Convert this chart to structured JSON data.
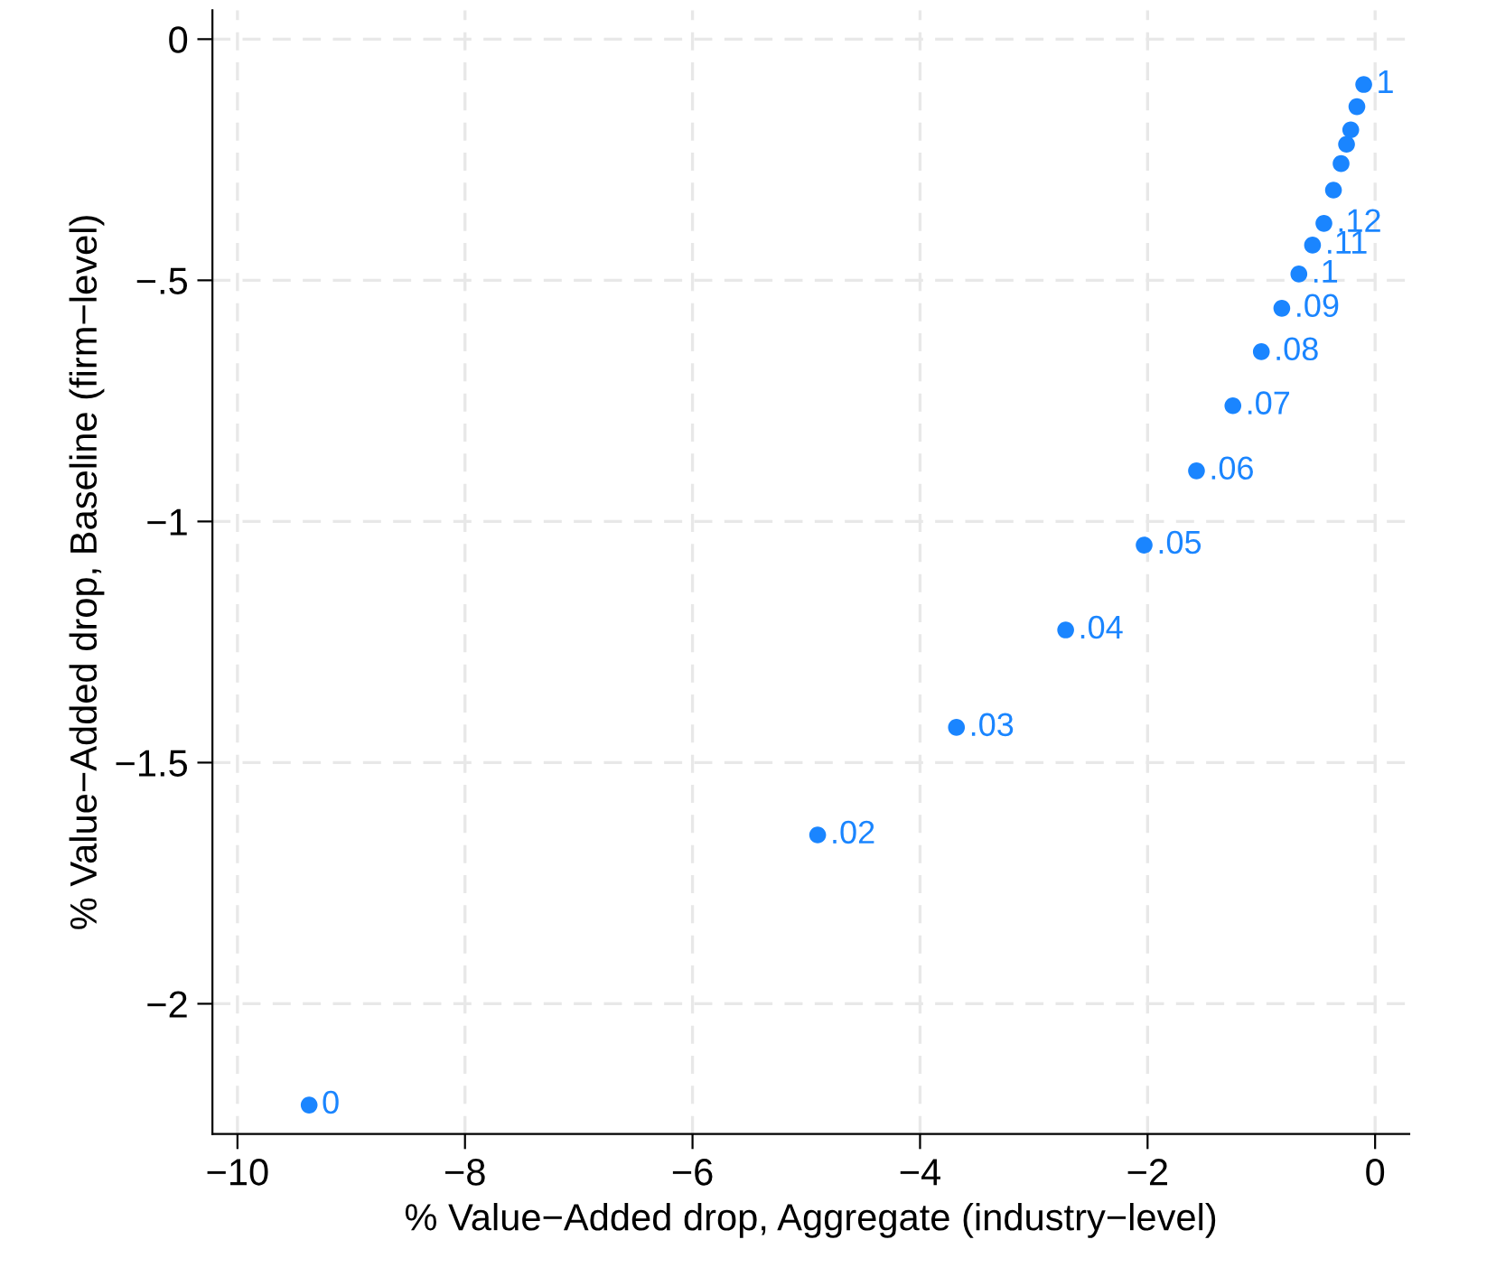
{
  "chart_data": {
    "type": "scatter",
    "xlabel": "% Value−Added drop, Aggregate (industry−level)",
    "ylabel": "% Value−Added drop, Baseline (firm−level)",
    "xlim": [
      -10.22,
      0.3
    ],
    "ylim": [
      -2.27,
      0.06
    ],
    "xticks": [
      {
        "value": -10,
        "label": "−10"
      },
      {
        "value": -8,
        "label": "−8"
      },
      {
        "value": -6,
        "label": "−6"
      },
      {
        "value": -4,
        "label": "−4"
      },
      {
        "value": -2,
        "label": "−2"
      },
      0
    ],
    "yticks": [
      {
        "value": -2,
        "label": "−2"
      },
      {
        "value": -1.5,
        "label": "−1.5"
      },
      {
        "value": -1,
        "label": "−1"
      },
      {
        "value": -0.5,
        "label": "−.5"
      },
      0
    ],
    "grid": true,
    "marker": "circle",
    "color": "#1a85ff",
    "x": [
      -9.37,
      -4.9,
      -3.68,
      -2.72,
      -2.03,
      -1.57,
      -1.25,
      -1.0,
      -0.82,
      -0.67,
      -0.55,
      -0.45,
      -0.366,
      -0.299,
      -0.251,
      -0.214,
      -0.16,
      -0.1
    ],
    "values": [
      -2.21,
      -1.65,
      -1.427,
      -1.225,
      -1.049,
      -0.895,
      -0.76,
      -0.648,
      -0.558,
      -0.487,
      -0.427,
      -0.382,
      -0.313,
      -0.258,
      -0.218,
      -0.188,
      -0.14,
      -0.094
    ],
    "annotations": [
      {
        "text": "0",
        "x": -9.37,
        "y": -2.21
      },
      {
        "text": ".02",
        "x": -4.9,
        "y": -1.65
      },
      {
        "text": ".03",
        "x": -3.68,
        "y": -1.427
      },
      {
        "text": ".04",
        "x": -2.72,
        "y": -1.225
      },
      {
        "text": ".05",
        "x": -2.03,
        "y": -1.049
      },
      {
        "text": ".06",
        "x": -1.57,
        "y": -0.895
      },
      {
        "text": ".07",
        "x": -1.25,
        "y": -0.76
      },
      {
        "text": ".08",
        "x": -1.0,
        "y": -0.648
      },
      {
        "text": ".09",
        "x": -0.82,
        "y": -0.558
      },
      {
        "text": ".1",
        "x": -0.67,
        "y": -0.487
      },
      {
        "text": ".11",
        "x": -0.55,
        "y": -0.427
      },
      {
        "text": ".12",
        "x": -0.45,
        "y": -0.382
      },
      {
        "text": "1",
        "x": -0.1,
        "y": -0.094
      }
    ]
  }
}
